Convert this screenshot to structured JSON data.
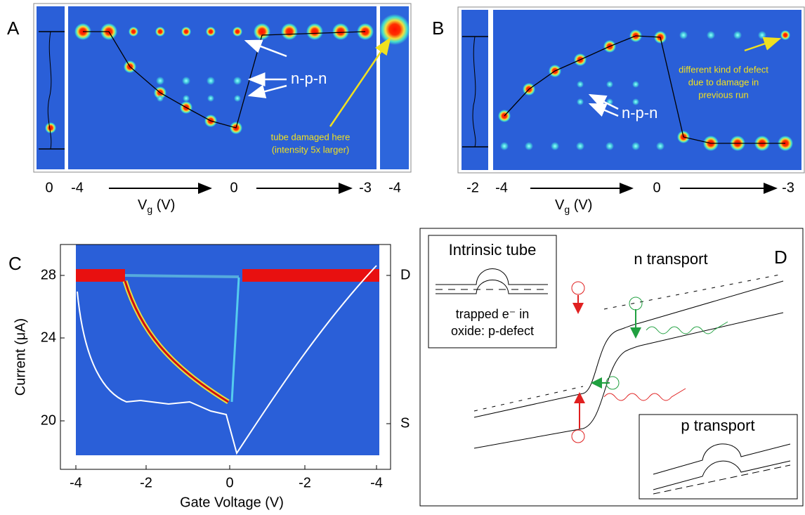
{
  "panels": [
    {
      "label": "A",
      "ticks": [
        "0",
        "-4",
        "0",
        "-3",
        "-4"
      ],
      "axis": {
        "main": "V",
        "sub": "g",
        "unit": " (V)"
      },
      "annotations": [
        "n-p-n",
        "tube damaged here",
        "(intensity 5x larger)"
      ]
    },
    {
      "label": "B",
      "ticks": [
        "-2",
        "-4",
        "0",
        "-3"
      ],
      "axis": {
        "main": "V",
        "sub": "g",
        "unit": " (V)"
      },
      "annotations": [
        "different kind of defect",
        "due to damage in",
        "previous run",
        "n-p-n"
      ]
    },
    {
      "label": "C",
      "yticks": [
        "28",
        "24",
        "20"
      ],
      "xticks": [
        "-4",
        "-2",
        "0",
        "-2",
        "-4"
      ],
      "right_labels": [
        "D",
        "S"
      ],
      "ylabel": "Current (μA)",
      "xlabel": "Gate Voltage (V)"
    },
    {
      "label": "D",
      "texts": [
        "Intrinsic tube",
        "trapped e⁻ in",
        "oxide: p-defect",
        "n transport",
        "p transport"
      ]
    }
  ]
}
